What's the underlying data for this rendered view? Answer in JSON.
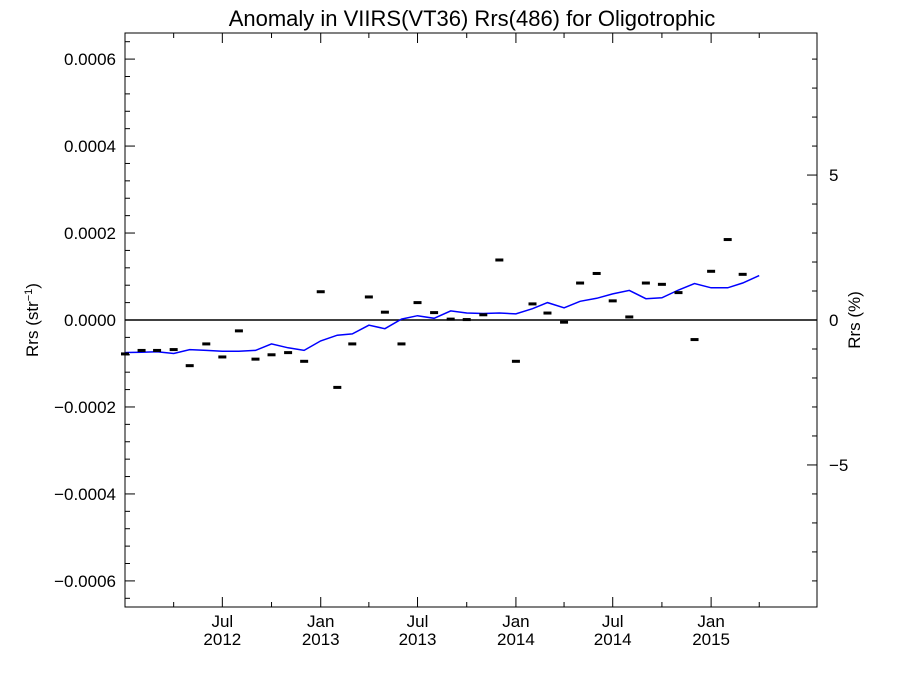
{
  "chart_data": {
    "type": "scatter",
    "title": "Anomaly in VIIRS(VT36) Rrs(486) for Oligotrophic",
    "ylabel_left": "Rrs (str⁻¹)",
    "ylabel_right": "Rrs (%)",
    "xlim": [
      "2012-01-01",
      "2015-07-18"
    ],
    "ylim_left": [
      -0.00066,
      0.00066
    ],
    "ylim_right": [
      -9.9,
      9.9
    ],
    "grid": false,
    "x_ticks": [
      {
        "month": "Jul",
        "year": "2012",
        "date": "2012-07-01"
      },
      {
        "month": "Jan",
        "year": "2013",
        "date": "2013-01-01"
      },
      {
        "month": "Jul",
        "year": "2013",
        "date": "2013-07-01"
      },
      {
        "month": "Jan",
        "year": "2014",
        "date": "2014-01-01"
      },
      {
        "month": "Jul",
        "year": "2014",
        "date": "2014-07-01"
      },
      {
        "month": "Jan",
        "year": "2015",
        "date": "2015-01-01"
      }
    ],
    "y_ticks_left": [
      {
        "value": 0.0006,
        "label": "0.0006"
      },
      {
        "value": 0.0004,
        "label": "0.0004"
      },
      {
        "value": 0.0002,
        "label": "0.0002"
      },
      {
        "value": 0.0,
        "label": "0.0000"
      },
      {
        "value": -0.0002,
        "label": "−0.0002"
      },
      {
        "value": -0.0004,
        "label": "−0.0004"
      },
      {
        "value": -0.0006,
        "label": "−0.0006"
      }
    ],
    "y_ticks_right": [
      {
        "value": 5,
        "label": "5"
      },
      {
        "value": 0,
        "label": "0"
      },
      {
        "value": -5,
        "label": "−5"
      }
    ],
    "zero_line": 0,
    "series": [
      {
        "kind": "points",
        "color": "#000000",
        "x": [
          "2012-01-01",
          "2012-02-01",
          "2012-03-01",
          "2012-04-01",
          "2012-05-01",
          "2012-06-01",
          "2012-07-01",
          "2012-08-01",
          "2012-09-01",
          "2012-10-01",
          "2012-11-01",
          "2012-12-01",
          "2013-01-01",
          "2013-02-01",
          "2013-03-01",
          "2013-04-01",
          "2013-05-01",
          "2013-06-01",
          "2013-07-01",
          "2013-08-01",
          "2013-09-01",
          "2013-10-01",
          "2013-11-01",
          "2013-12-01",
          "2014-01-01",
          "2014-02-01",
          "2014-03-01",
          "2014-04-01",
          "2014-05-01",
          "2014-06-01",
          "2014-07-01",
          "2014-08-01",
          "2014-09-01",
          "2014-10-01",
          "2014-11-01",
          "2014-12-01",
          "2015-01-01",
          "2015-02-01",
          "2015-03-01"
        ],
        "y": [
          -7.8e-05,
          -7e-05,
          -7e-05,
          -6.8e-05,
          -0.000105,
          -5.5e-05,
          -8.5e-05,
          -2.5e-05,
          -9e-05,
          -8e-05,
          -7.5e-05,
          -9.5e-05,
          6.5e-05,
          -0.000155,
          -5.5e-05,
          5.3e-05,
          1.8e-05,
          -5.5e-05,
          4e-05,
          1.7e-05,
          2e-06,
          1e-06,
          1.2e-05,
          0.000138,
          -9.5e-05,
          3.7e-05,
          1.6e-05,
          -5e-06,
          8.5e-05,
          0.000107,
          4.4e-05,
          7e-06,
          8.5e-05,
          8.2e-05,
          6.3e-05,
          -4.5e-05,
          0.000112,
          0.000185,
          0.000105
        ]
      },
      {
        "kind": "line",
        "color": "#0000ff",
        "x": [
          "2012-01-01",
          "2012-02-01",
          "2012-03-01",
          "2012-04-01",
          "2012-05-01",
          "2012-06-01",
          "2012-07-01",
          "2012-08-01",
          "2012-09-01",
          "2012-10-01",
          "2012-11-01",
          "2012-12-01",
          "2013-01-01",
          "2013-02-01",
          "2013-03-01",
          "2013-04-01",
          "2013-05-01",
          "2013-06-01",
          "2013-07-01",
          "2013-08-01",
          "2013-09-01",
          "2013-10-01",
          "2013-11-01",
          "2013-12-01",
          "2014-01-01",
          "2014-02-01",
          "2014-03-01",
          "2014-04-01",
          "2014-05-01",
          "2014-06-01",
          "2014-07-01",
          "2014-08-01",
          "2014-09-01",
          "2014-10-01",
          "2014-11-01",
          "2014-12-01",
          "2015-01-01",
          "2015-02-01",
          "2015-03-01",
          "2015-04-01"
        ],
        "y": [
          -7.5e-05,
          -7.4e-05,
          -7.3e-05,
          -7.7e-05,
          -6.8e-05,
          -7e-05,
          -7.2e-05,
          -7.2e-05,
          -7e-05,
          -5.5e-05,
          -6.4e-05,
          -7e-05,
          -4.8e-05,
          -3.5e-05,
          -3.2e-05,
          -1.2e-05,
          -2e-05,
          2e-06,
          1e-05,
          4e-06,
          2.1e-05,
          1.6e-05,
          1.5e-05,
          1.6e-05,
          1.4e-05,
          2.6e-05,
          4e-05,
          2.8e-05,
          4.3e-05,
          5e-05,
          6e-05,
          6.8e-05,
          4.9e-05,
          5.1e-05,
          6.9e-05,
          8.4e-05,
          7.4e-05,
          7.4e-05,
          8.5e-05,
          0.000102
        ]
      }
    ]
  }
}
